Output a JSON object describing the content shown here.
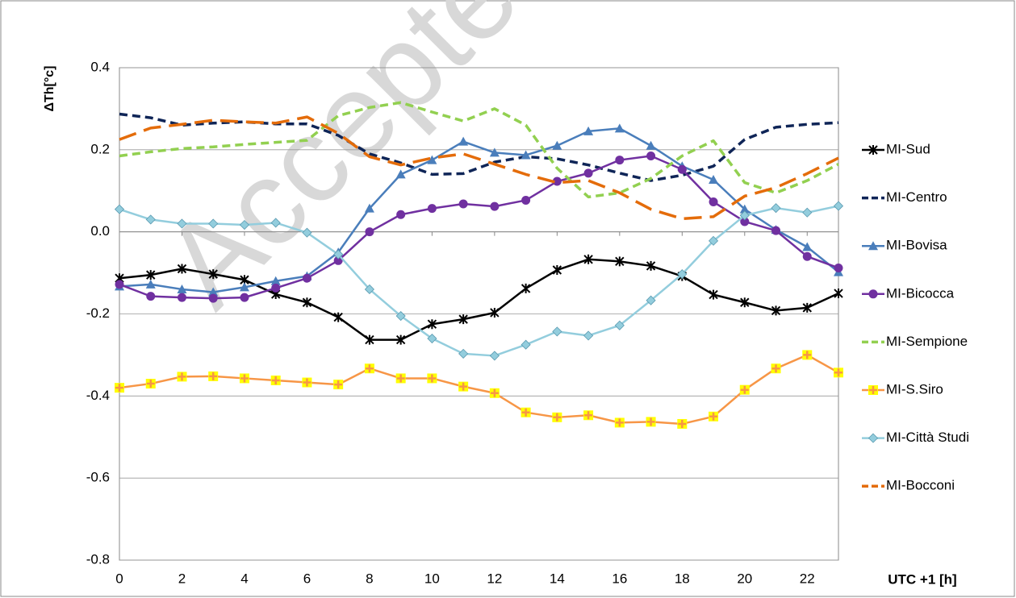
{
  "chart_data": {
    "type": "line",
    "watermark": "Accepted",
    "y_label": "ΔTh[°c]",
    "x_label": "UTC +1 [h]",
    "x": [
      0,
      1,
      2,
      3,
      4,
      5,
      6,
      7,
      8,
      9,
      10,
      11,
      12,
      13,
      14,
      15,
      16,
      17,
      18,
      19,
      20,
      21,
      22,
      23
    ],
    "xlim": [
      0,
      23
    ],
    "xticks": [
      0,
      2,
      4,
      6,
      8,
      10,
      12,
      14,
      16,
      18,
      20,
      22
    ],
    "ylim": [
      -0.8,
      0.4
    ],
    "yticks": [
      -0.8,
      -0.6,
      -0.4,
      -0.2,
      {
        "value": 0,
        "label": "0.0"
      },
      0.2,
      0.4
    ],
    "grid": true,
    "legend": "right",
    "series": [
      {
        "name": "MI-Sud",
        "color": "#000000",
        "marker": "star",
        "dash": "solid",
        "values": [
          -0.113,
          -0.105,
          -0.09,
          -0.103,
          -0.117,
          -0.152,
          -0.172,
          -0.208,
          -0.263,
          -0.263,
          -0.225,
          -0.213,
          -0.197,
          -0.138,
          -0.093,
          -0.067,
          -0.072,
          -0.083,
          -0.108,
          -0.153,
          -0.172,
          -0.192,
          -0.185,
          -0.15
        ]
      },
      {
        "name": "MI-Centro",
        "color": "#0f2557",
        "marker": "none",
        "dash": "dash",
        "values": [
          0.287,
          0.278,
          0.26,
          0.265,
          0.268,
          0.263,
          0.263,
          0.235,
          0.19,
          0.168,
          0.14,
          0.142,
          0.17,
          0.183,
          0.178,
          0.163,
          0.143,
          0.125,
          0.138,
          0.16,
          0.225,
          0.255,
          0.262,
          0.266
        ]
      },
      {
        "name": "MI-Bovisa",
        "color": "#4a7ebb",
        "marker": "triangle",
        "dash": "solid",
        "values": [
          -0.133,
          -0.128,
          -0.14,
          -0.147,
          -0.135,
          -0.12,
          -0.108,
          -0.05,
          0.057,
          0.14,
          0.175,
          0.22,
          0.193,
          0.187,
          0.21,
          0.245,
          0.252,
          0.21,
          0.16,
          0.127,
          0.055,
          0.005,
          -0.037,
          -0.098
        ]
      },
      {
        "name": "MI-Bicocca",
        "color": "#7030a0",
        "marker": "circle",
        "dash": "solid",
        "values": [
          -0.128,
          -0.157,
          -0.16,
          -0.162,
          -0.16,
          -0.137,
          -0.113,
          -0.07,
          0,
          0.042,
          0.057,
          0.068,
          0.062,
          0.077,
          0.123,
          0.143,
          0.175,
          0.185,
          0.152,
          0.073,
          0.025,
          0.003,
          -0.06,
          -0.088
        ]
      },
      {
        "name": "MI-Sempione",
        "color": "#92d050",
        "marker": "none",
        "dash": "dash",
        "values": [
          0.185,
          0.195,
          0.203,
          0.207,
          0.213,
          0.218,
          0.223,
          0.283,
          0.303,
          0.315,
          0.292,
          0.27,
          0.3,
          0.26,
          0.155,
          0.085,
          0.095,
          0.13,
          0.185,
          0.222,
          0.12,
          0.095,
          0.125,
          0.165
        ]
      },
      {
        "name": "MI-S.Siro",
        "color": "#f79646",
        "marker": "plus",
        "dash": "solid",
        "values": [
          -0.38,
          -0.37,
          -0.353,
          -0.352,
          -0.357,
          -0.362,
          -0.367,
          -0.372,
          -0.333,
          -0.357,
          -0.357,
          -0.377,
          -0.393,
          -0.44,
          -0.452,
          -0.447,
          -0.465,
          -0.463,
          -0.468,
          -0.45,
          -0.385,
          -0.333,
          -0.3,
          -0.343
        ]
      },
      {
        "name": "MI-Città Studi",
        "color": "#93cddd",
        "marker": "diamond",
        "dash": "solid",
        "values": [
          0.055,
          0.03,
          0.02,
          0.02,
          0.017,
          0.022,
          -0.002,
          -0.055,
          -0.14,
          -0.205,
          -0.26,
          -0.297,
          -0.302,
          -0.275,
          -0.243,
          -0.253,
          -0.228,
          -0.167,
          -0.103,
          -0.022,
          0.04,
          0.058,
          0.047,
          0.063
        ]
      },
      {
        "name": "MI-Bocconi",
        "color": "#e46c0a",
        "marker": "none",
        "dash": "longdash",
        "values": [
          0.225,
          0.253,
          0.262,
          0.272,
          0.268,
          0.265,
          0.28,
          0.24,
          0.183,
          0.163,
          0.18,
          0.19,
          0.165,
          0.14,
          0.12,
          0.125,
          0.095,
          0.055,
          0.032,
          0.037,
          0.087,
          0.108,
          0.142,
          0.18
        ]
      }
    ]
  }
}
